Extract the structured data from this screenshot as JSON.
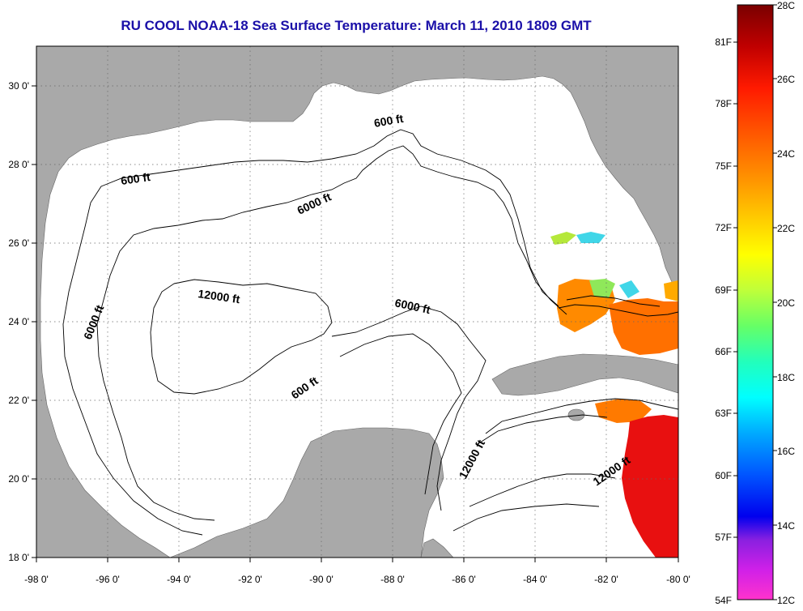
{
  "title": "RU COOL  NOAA-18  Sea Surface Temperature:  March 11, 2010 1809 GMT",
  "colors": {
    "land": "#a9a9a9",
    "water_nodata": "#ffffff",
    "title": "#1a0fa8"
  },
  "map": {
    "lon_range": [
      -98,
      -80
    ],
    "lat_range": [
      18,
      31
    ],
    "x_ticks": [
      "-98 0'",
      "-96 0'",
      "-94 0'",
      "-92 0'",
      "-90 0'",
      "-88 0'",
      "-86 0'",
      "-84 0'",
      "-82 0'",
      "-80 0'"
    ],
    "y_ticks": [
      "30 0'",
      "28 0'",
      "26 0'",
      "24 0'",
      "22 0'",
      "20 0'",
      "18 0'"
    ],
    "grid": "dotted"
  },
  "contour_labels": [
    {
      "id": "600ft-north",
      "text": "600 ft"
    },
    {
      "id": "600ft-west",
      "text": "600 ft"
    },
    {
      "id": "6000ft-north",
      "text": "6000 ft"
    },
    {
      "id": "6000ft-west",
      "text": "6000 ft"
    },
    {
      "id": "12000ft-center",
      "text": "12000 ft"
    },
    {
      "id": "6000ft-east",
      "text": "6000 ft"
    },
    {
      "id": "600ft-south",
      "text": "600 ft"
    },
    {
      "id": "12000ft-south",
      "text": "12000 ft"
    },
    {
      "id": "12000ft-caribbean",
      "text": "12000 ft"
    }
  ],
  "colorbar": {
    "celsius": [
      "28C",
      "26C",
      "24C",
      "22C",
      "20C",
      "18C",
      "16C",
      "14C",
      "12C"
    ],
    "fahrenheit": [
      "81F",
      "78F",
      "75F",
      "72F",
      "69F",
      "66F",
      "63F",
      "60F",
      "57F",
      "54F"
    ]
  }
}
